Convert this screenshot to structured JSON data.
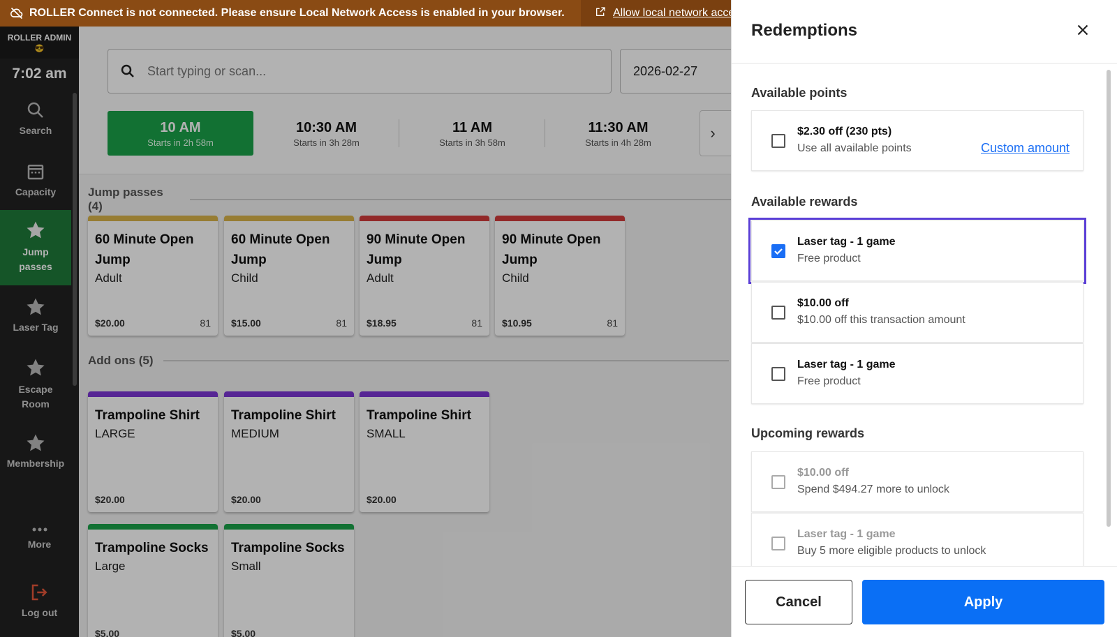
{
  "banner": {
    "message": "ROLLER Connect is not connected. Please ensure Local Network Access is enabled in your browser.",
    "link": "Allow local network access",
    "icon": "cloud-off-icon",
    "bg_color": "#8a4b14"
  },
  "sidebar": {
    "admin_label": "ROLLER ADMIN",
    "admin_emoji": "😎",
    "time": "7:02 am",
    "items": [
      {
        "label": "Search",
        "icon": "search-icon"
      },
      {
        "label": "Capacity",
        "icon": "calendar-icon"
      },
      {
        "label": "Jump passes",
        "icon": "star-icon",
        "active": true
      },
      {
        "label": "Laser Tag",
        "icon": "star-icon"
      },
      {
        "label": "Escape Room",
        "icon": "star-icon"
      },
      {
        "label": "Membership",
        "icon": "star-icon"
      },
      {
        "label": "More",
        "icon": "more-icon"
      },
      {
        "label": "Log out",
        "icon": "logout-icon"
      }
    ]
  },
  "main": {
    "search_placeholder": "Start typing or scan...",
    "date": "2026-02-27",
    "slots": [
      {
        "time": "10 AM",
        "sub": "Starts in 2h 58m",
        "active": true
      },
      {
        "time": "10:30 AM",
        "sub": "Starts in 3h 28m"
      },
      {
        "time": "11 AM",
        "sub": "Starts in 3h 58m"
      },
      {
        "time": "11:30 AM",
        "sub": "Starts in 4h 28m"
      }
    ],
    "sections": {
      "jump": "Jump passes (4)",
      "addons": "Add ons (5)"
    },
    "jump_cards": [
      {
        "name": "60 Minute Open Jump",
        "variant": "Adult",
        "price": "$20.00",
        "stock": "81",
        "color": "#d9b44a"
      },
      {
        "name": "60 Minute Open Jump",
        "variant": "Child",
        "price": "$15.00",
        "stock": "81",
        "color": "#d9b44a"
      },
      {
        "name": "90 Minute Open Jump",
        "variant": "Adult",
        "price": "$18.95",
        "stock": "81",
        "color": "#d23c3c"
      },
      {
        "name": "90 Minute Open Jump",
        "variant": "Child",
        "price": "$10.95",
        "stock": "81",
        "color": "#d23c3c"
      }
    ],
    "addon_cards": [
      {
        "name": "Trampoline Shirt",
        "variant": "LARGE",
        "price": "$20.00",
        "color": "#7b35d4"
      },
      {
        "name": "Trampoline Shirt",
        "variant": "MEDIUM",
        "price": "$20.00",
        "color": "#7b35d4"
      },
      {
        "name": "Trampoline Shirt",
        "variant": "SMALL",
        "price": "$20.00",
        "color": "#7b35d4"
      },
      {
        "name": "Trampoline Socks",
        "variant": "Large",
        "price": "$5.00",
        "color": "#1aa34a"
      },
      {
        "name": "Trampoline Socks",
        "variant": "Small",
        "price": "$5.00",
        "color": "#1aa34a"
      }
    ]
  },
  "drawer": {
    "title": "Redemptions",
    "available_points_heading": "Available points",
    "points": {
      "title": "$2.30 off (230 pts)",
      "sub": "Use all available points",
      "custom": "Custom amount"
    },
    "available_rewards_heading": "Available rewards",
    "rewards": [
      {
        "title": "Laser tag - 1 game",
        "sub": "Free product",
        "checked": true
      },
      {
        "title": "$10.00 off",
        "sub": "$10.00 off this transaction amount",
        "checked": false
      },
      {
        "title": "Laser tag - 1 game",
        "sub": "Free product",
        "checked": false
      }
    ],
    "upcoming_rewards_heading": "Upcoming rewards",
    "upcoming": [
      {
        "title": "$10.00 off",
        "sub": "Spend $494.27 more to unlock"
      },
      {
        "title": "Laser tag - 1 game",
        "sub": "Buy 5 more eligible products to unlock"
      }
    ],
    "cancel": "Cancel",
    "apply": "Apply",
    "accent": "#0a6ff5"
  }
}
